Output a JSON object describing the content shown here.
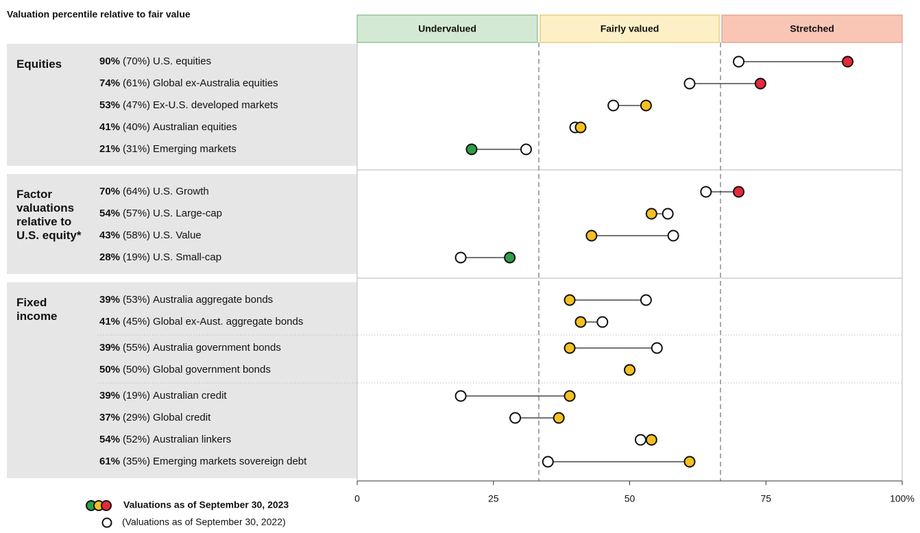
{
  "chart_data": {
    "type": "dumbbell",
    "title": "Valuation percentile relative to fair value",
    "zones": [
      {
        "label": "Undervalued",
        "range": [
          0,
          33.33
        ],
        "color": "#d3e9d3",
        "border": "#6fae6f",
        "dot_color": "#2e9e48"
      },
      {
        "label": "Fairly valued",
        "range": [
          33.33,
          66.67
        ],
        "color": "#fdf0c6",
        "border": "#dcb95a",
        "dot_color": "#f5c020"
      },
      {
        "label": "Stretched",
        "range": [
          66.67,
          100
        ],
        "color": "#f9c6b6",
        "border": "#e08a72",
        "dot_color": "#e8283c"
      }
    ],
    "groups": [
      {
        "label": "Equities",
        "sections": [
          [
            "U.S. equities",
            "Global ex-Australia equities",
            "Ex-U.S. developed markets",
            "Australian equities",
            "Emerging markets"
          ]
        ]
      },
      {
        "label": "Factor valuations relative to U.S. equity*",
        "sections": [
          [
            "U.S. Growth",
            "U.S. Large-cap",
            "U.S. Value",
            "U.S. Small-cap"
          ]
        ]
      },
      {
        "label": "Fixed income",
        "sections": [
          [
            "Australia aggregate bonds",
            "Global ex-Aust. aggregate bonds"
          ],
          [
            "Australia government bonds",
            "Global government bonds"
          ],
          [
            "Australian credit",
            "Global credit",
            "Australian linkers",
            "Emerging markets sovereign debt"
          ]
        ]
      }
    ],
    "series": [
      {
        "name": "Valuations as of September 30, 2023",
        "values": [
          90,
          74,
          53,
          41,
          21,
          70,
          54,
          43,
          28,
          39,
          41,
          39,
          50,
          39,
          37,
          54,
          61
        ],
        "value_labels": [
          "90%",
          "74%",
          "53%",
          "41%",
          "21%",
          "70%",
          "54%",
          "43%",
          "28%",
          "39%",
          "41%",
          "39%",
          "50%",
          "39%",
          "37%",
          "54%",
          "61%"
        ]
      },
      {
        "name": "(Valuations as of September 30, 2022)",
        "color": "#ffffff",
        "values": [
          70,
          61,
          47,
          40,
          31,
          64,
          57,
          58,
          19,
          53,
          45,
          55,
          50,
          19,
          29,
          52,
          35
        ],
        "value_labels": [
          "(70%)",
          "(61%)",
          "(47%)",
          "(40%)",
          "(31%)",
          "(64%)",
          "(57%)",
          "(58%)",
          "(19%)",
          "(53%)",
          "(45%)",
          "(55%)",
          "(50%)",
          "(19%)",
          "(29%)",
          "(52%)",
          "(35%)"
        ]
      }
    ],
    "xlim": [
      0,
      100
    ],
    "xticks": [
      0,
      25,
      50,
      75,
      {
        "value": 100,
        "label": "100%"
      }
    ]
  }
}
